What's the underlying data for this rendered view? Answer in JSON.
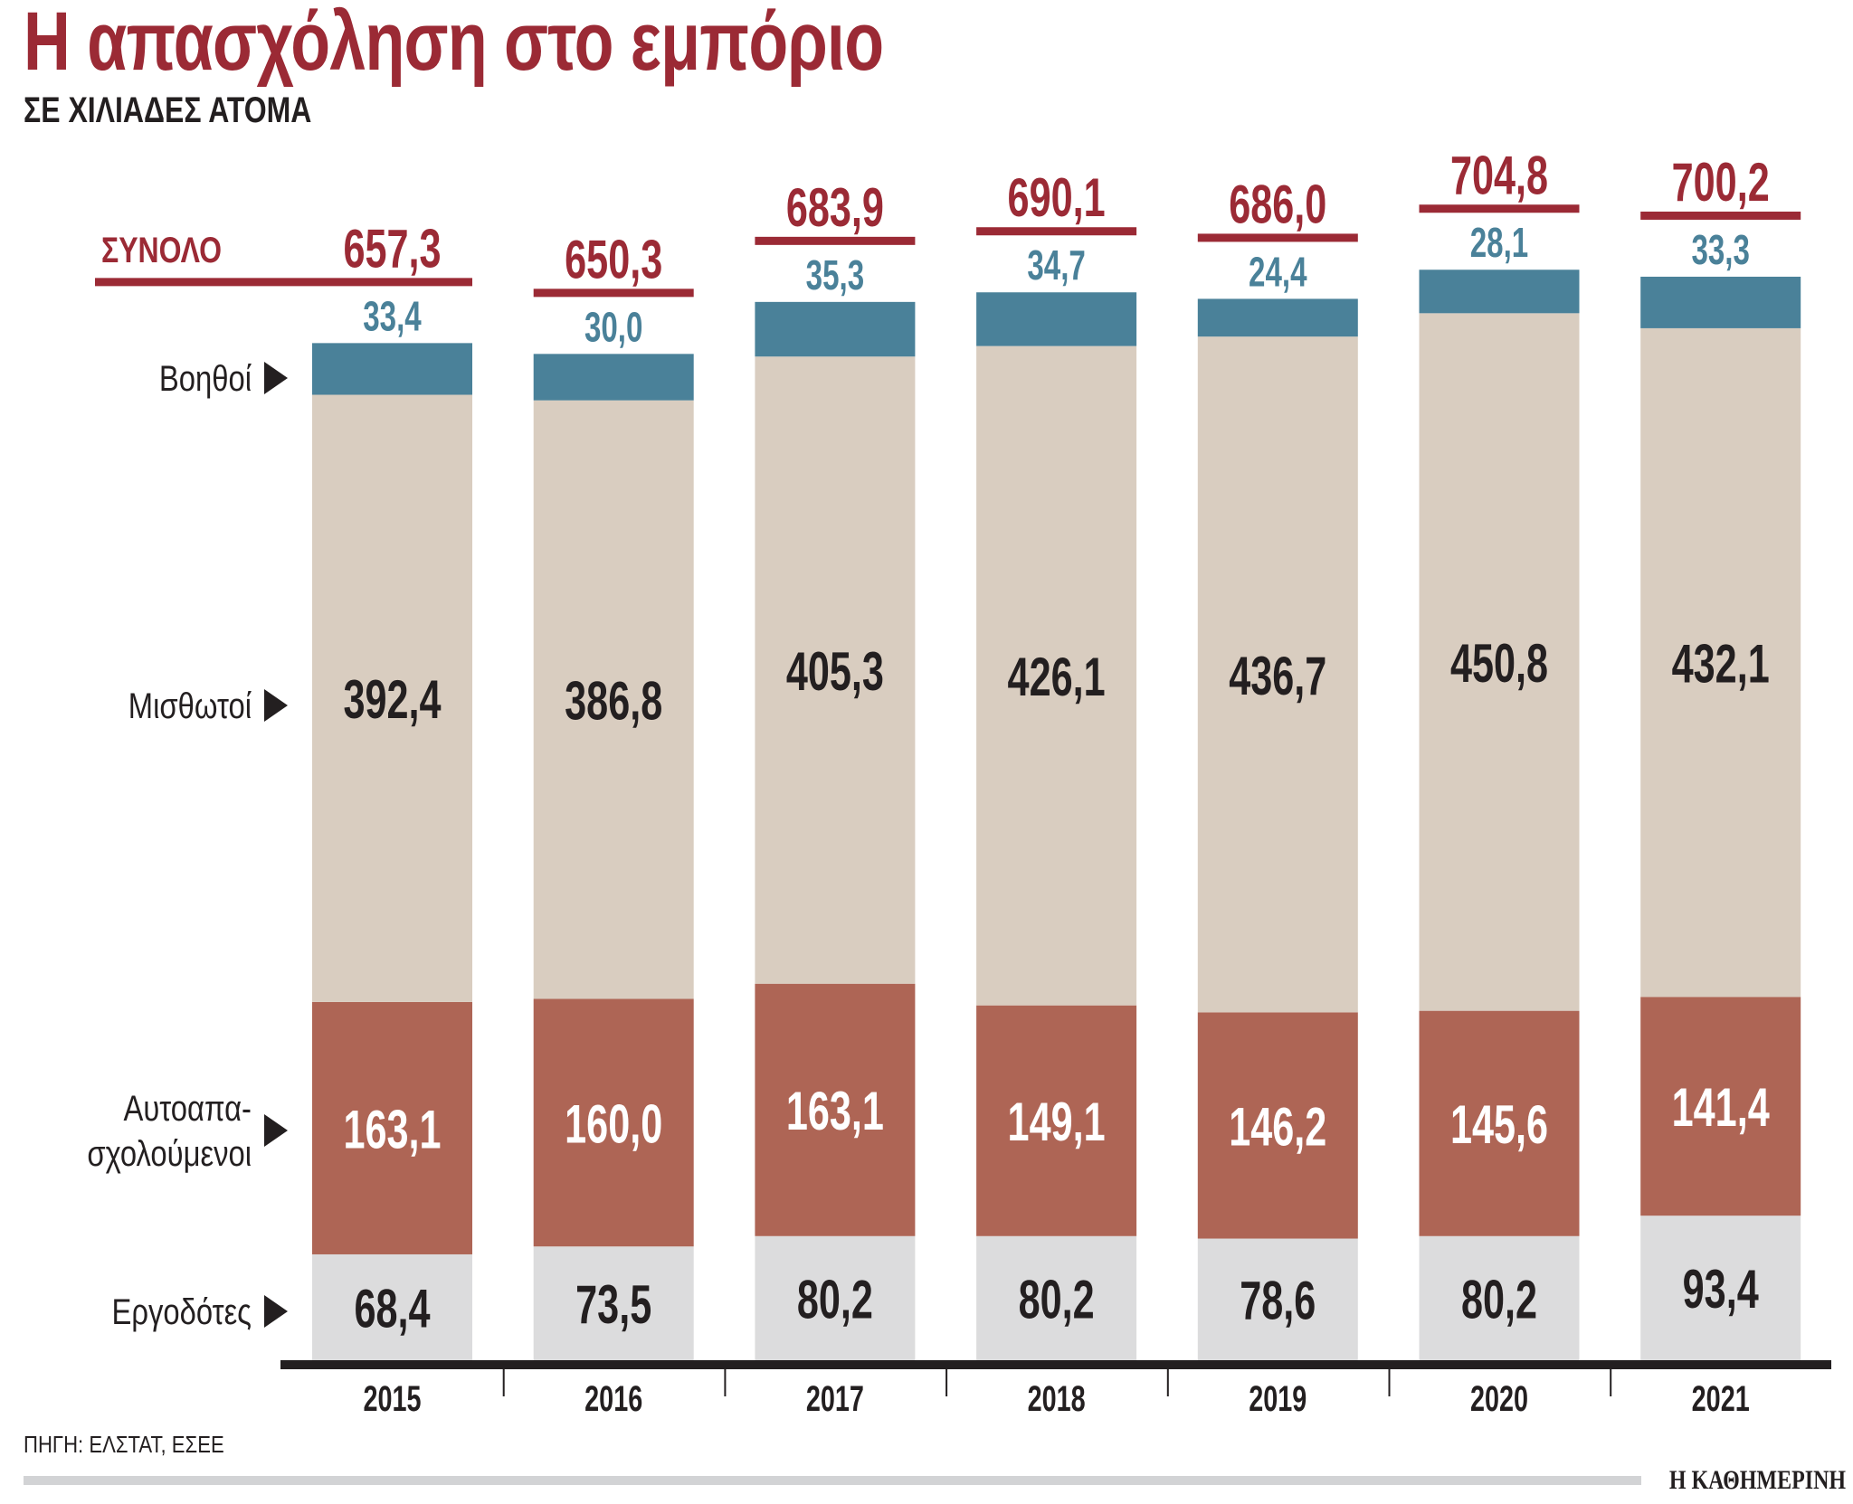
{
  "chart_data": {
    "type": "bar",
    "stacked": true,
    "title": "Η απασχόληση στο εμπόριο",
    "subtitle": "ΣΕ ΧΙΛΙΑΔΕΣ ΑΤΟΜΑ",
    "categories": [
      "2015",
      "2016",
      "2017",
      "2018",
      "2019",
      "2020",
      "2021"
    ],
    "series": [
      {
        "name": "Εργοδότες",
        "values": [
          68.4,
          73.5,
          80.2,
          80.2,
          78.6,
          80.2,
          93.4
        ],
        "labels": [
          "68,4",
          "73,5",
          "80,2",
          "80,2",
          "78,6",
          "80,2",
          "93,4"
        ],
        "color": "#dcdcdd",
        "label_color": "#231f20"
      },
      {
        "name_lines": [
          "Αυτοαπα-",
          "σχολούμενοι"
        ],
        "values": [
          163.1,
          160.0,
          163.1,
          149.1,
          146.2,
          145.6,
          141.4
        ],
        "labels": [
          "163,1",
          "160,0",
          "163,1",
          "149,1",
          "146,2",
          "145,6",
          "141,4"
        ],
        "color": "#ae6555",
        "label_color": "#ffffff"
      },
      {
        "name": "Μισθωτοί",
        "values": [
          392.4,
          386.8,
          405.3,
          426.1,
          436.7,
          450.8,
          432.1
        ],
        "labels": [
          "392,4",
          "386,8",
          "405,3",
          "426,1",
          "436,7",
          "450,8",
          "432,1"
        ],
        "color": "#d9cdc0",
        "label_color": "#231f20"
      },
      {
        "name": "Βοηθοί",
        "values": [
          33.4,
          30.0,
          35.3,
          34.7,
          24.4,
          28.1,
          33.3
        ],
        "labels": [
          "33,4",
          "30,0",
          "35,3",
          "34,7",
          "24,4",
          "28,1",
          "33,3"
        ],
        "color": "#4a8199",
        "label_color": "#4a8199"
      }
    ],
    "totals": {
      "name": "ΣΥΝΟΛΟ",
      "values": [
        657.3,
        650.3,
        683.9,
        690.1,
        686.0,
        704.8,
        700.2
      ],
      "labels": [
        "657,3",
        "650,3",
        "683,9",
        "690,1",
        "686,0",
        "704,8",
        "700,2"
      ],
      "color": "#9b2a35"
    },
    "ylim": [
      0,
      720
    ],
    "grid": false,
    "legend": "left"
  },
  "source": "ΠΗΓΗ: ΕΛΣΤΑΤ, ΕΣΕΕ",
  "brand": "Η ΚΑΘΗΜΕΡΙΝΗ"
}
